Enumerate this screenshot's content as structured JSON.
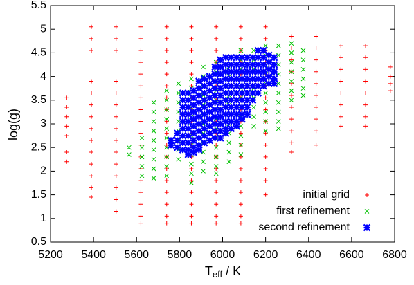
{
  "chart_data": {
    "type": "scatter",
    "xlabel_parts": [
      "T",
      "eff",
      " / K"
    ],
    "ylabel": "log(g)",
    "xlim": [
      5200,
      6800
    ],
    "xticks": [
      5200,
      5400,
      5600,
      5800,
      6000,
      6200,
      6400,
      6600,
      6800
    ],
    "ylim": [
      0.5,
      5.5
    ],
    "yticks": [
      0.5,
      1,
      1.5,
      2,
      2.5,
      3,
      3.5,
      4,
      4.5,
      5,
      5.5
    ],
    "legend": "lower right",
    "series": [
      {
        "name": "initial grid",
        "color": "#ff0000",
        "marker": "plus",
        "x": [
          5275,
          5275,
          5275,
          5275,
          5275,
          5275,
          5275,
          5390,
          5390,
          5390,
          5390,
          5390,
          5390,
          5390,
          5390,
          5390,
          5390,
          5390,
          5390,
          5390,
          5390,
          5505,
          5505,
          5505,
          5505,
          5505,
          5505,
          5505,
          5505,
          5505,
          5505,
          5505,
          5505,
          5505,
          5505,
          5505,
          5620,
          5620,
          5620,
          5620,
          5620,
          5620,
          5620,
          5620,
          5620,
          5620,
          5620,
          5620,
          5620,
          5620,
          5620,
          5620,
          5620,
          5620,
          5740,
          5740,
          5740,
          5740,
          5740,
          5740,
          5740,
          5740,
          5740,
          5740,
          5740,
          5740,
          5740,
          5740,
          5740,
          5740,
          5740,
          5740,
          5855,
          5855,
          5855,
          5855,
          5855,
          5855,
          5855,
          5855,
          5855,
          5855,
          5855,
          5855,
          5855,
          5855,
          5855,
          5855,
          5855,
          5855,
          5970,
          5970,
          5970,
          5970,
          5970,
          5970,
          5970,
          5970,
          5970,
          5970,
          5970,
          5970,
          5970,
          5970,
          5970,
          5970,
          5970,
          5970,
          6085,
          6085,
          6085,
          6085,
          6085,
          6085,
          6085,
          6085,
          6085,
          6085,
          6085,
          6085,
          6085,
          6085,
          6085,
          6085,
          6085,
          6085,
          6200,
          6200,
          6200,
          6200,
          6200,
          6200,
          6200,
          6200,
          6200,
          6200,
          6200,
          6200,
          6200,
          6200,
          6200,
          6320,
          6320,
          6320,
          6320,
          6320,
          6320,
          6320,
          6320,
          6320,
          6320,
          6320,
          6435,
          6435,
          6435,
          6435,
          6435,
          6435,
          6435,
          6435,
          6435,
          6435,
          6550,
          6550,
          6550,
          6550,
          6550,
          6550,
          6550,
          6550,
          6665,
          6665,
          6665,
          6665,
          6665,
          6665,
          6665,
          6665,
          6780,
          6780,
          6780,
          6780
        ],
        "values": [
          3.55,
          3.35,
          3.15,
          2.95,
          2.75,
          2.4,
          2.2,
          5.05,
          4.8,
          4.55,
          3.9,
          3.65,
          3.4,
          3.15,
          2.9,
          2.65,
          2.4,
          2.15,
          1.9,
          1.65,
          1.45,
          5.05,
          4.8,
          4.55,
          3.9,
          3.65,
          3.4,
          3.15,
          2.9,
          2.65,
          2.4,
          2.15,
          1.9,
          1.65,
          1.4,
          1.15,
          5.05,
          4.8,
          4.55,
          4.3,
          4.05,
          3.8,
          3.55,
          3.3,
          3.05,
          2.8,
          2.55,
          2.3,
          2.05,
          1.8,
          1.55,
          1.3,
          1.05,
          0.9,
          5.05,
          4.8,
          4.55,
          4.3,
          4.05,
          3.8,
          3.55,
          3.3,
          3.05,
          2.8,
          2.55,
          2.3,
          2.05,
          1.8,
          1.55,
          1.3,
          1.05,
          0.9,
          5.05,
          4.8,
          4.55,
          4.3,
          4.05,
          3.8,
          3.55,
          3.3,
          3.05,
          2.8,
          2.55,
          2.3,
          2.05,
          1.8,
          1.55,
          1.3,
          1.05,
          0.9,
          5.05,
          4.8,
          4.55,
          4.3,
          4.05,
          3.8,
          3.55,
          3.3,
          3.05,
          2.8,
          2.55,
          2.3,
          2.05,
          1.8,
          1.55,
          1.3,
          1.05,
          0.9,
          5.05,
          4.8,
          4.55,
          4.3,
          4.05,
          3.8,
          3.55,
          3.3,
          3.05,
          2.8,
          2.55,
          2.3,
          2.05,
          1.8,
          1.55,
          1.3,
          1.05,
          0.9,
          5.05,
          4.8,
          4.55,
          4.3,
          4.05,
          3.8,
          3.55,
          3.3,
          3.05,
          2.8,
          2.55,
          2.3,
          2.05,
          1.8,
          1.5,
          4.85,
          4.6,
          4.35,
          4.1,
          3.85,
          3.6,
          3.35,
          3.1,
          2.85,
          2.6,
          2.4,
          4.85,
          4.6,
          4.35,
          4.1,
          3.85,
          3.6,
          3.35,
          3.1,
          2.85,
          2.55,
          4.65,
          4.4,
          4.15,
          3.9,
          3.65,
          3.4,
          3.15,
          2.95,
          4.65,
          4.4,
          4.15,
          3.9,
          3.65,
          3.4,
          3.15,
          2.95,
          4.2,
          4.0,
          3.85,
          3.7
        ]
      },
      {
        "name": "first refinement",
        "color": "#00c000",
        "marker": "cross",
        "x": [
          5565,
          5565,
          5625,
          5625,
          5625,
          5625,
          5625,
          5680,
          5680,
          5680,
          5680,
          5680,
          5680,
          5680,
          5680,
          5680,
          5740,
          5740,
          5740,
          5740,
          5740,
          5740,
          5740,
          5740,
          5740,
          5740,
          5795,
          5795,
          5795,
          5795,
          5795,
          5795,
          5795,
          5795,
          5795,
          5855,
          5855,
          5855,
          5855,
          5855,
          5855,
          5855,
          5855,
          5855,
          5855,
          5855,
          5855,
          5910,
          5910,
          5910,
          5910,
          5910,
          5910,
          5910,
          5910,
          5910,
          5910,
          5910,
          5910,
          5970,
          5970,
          5970,
          5970,
          5970,
          5970,
          5970,
          5970,
          5970,
          5970,
          5970,
          5970,
          5970,
          6030,
          6030,
          6030,
          6030,
          6030,
          6030,
          6030,
          6030,
          6030,
          6030,
          6030,
          6030,
          6085,
          6085,
          6085,
          6085,
          6085,
          6085,
          6085,
          6085,
          6085,
          6085,
          6085,
          6085,
          6145,
          6145,
          6145,
          6145,
          6145,
          6145,
          6145,
          6145,
          6145,
          6200,
          6200,
          6200,
          6200,
          6200,
          6200,
          6200,
          6200,
          6200,
          6200,
          6260,
          6260,
          6260,
          6260,
          6260,
          6260,
          6260,
          6260,
          6260,
          6260,
          6320,
          6320,
          6320,
          6320,
          6320,
          6320,
          6320,
          6375,
          6375,
          6375,
          6375,
          6375,
          6375
        ],
        "values": [
          2.5,
          2.35,
          2.7,
          2.5,
          2.3,
          2.1,
          1.9,
          3.45,
          3.25,
          3.05,
          2.85,
          2.65,
          2.45,
          2.25,
          2.05,
          1.85,
          3.7,
          3.5,
          3.3,
          3.1,
          2.9,
          2.7,
          2.5,
          2.3,
          2.1,
          1.9,
          3.85,
          3.65,
          3.45,
          3.25,
          3.05,
          2.85,
          2.65,
          2.45,
          2.25,
          3.95,
          3.75,
          3.55,
          3.35,
          3.15,
          2.95,
          2.75,
          2.55,
          2.35,
          2.15,
          1.95,
          1.75,
          4.2,
          4.0,
          3.8,
          3.6,
          3.4,
          3.2,
          3.0,
          2.8,
          2.6,
          2.4,
          2.2,
          2.0,
          4.3,
          4.1,
          3.9,
          3.7,
          3.5,
          3.3,
          3.1,
          2.9,
          2.7,
          2.5,
          2.3,
          2.1,
          1.95,
          4.4,
          4.2,
          4.0,
          3.8,
          3.6,
          3.4,
          3.2,
          3.0,
          2.8,
          2.6,
          2.4,
          2.2,
          4.55,
          4.35,
          4.15,
          3.95,
          3.75,
          3.55,
          3.35,
          3.15,
          2.95,
          2.75,
          2.55,
          2.35,
          4.55,
          4.35,
          4.15,
          3.95,
          3.75,
          3.55,
          3.35,
          3.15,
          2.95,
          4.65,
          4.45,
          4.25,
          4.05,
          3.85,
          3.65,
          3.45,
          3.25,
          3.05,
          2.85,
          4.65,
          4.45,
          4.25,
          4.05,
          3.85,
          3.65,
          3.45,
          3.25,
          3.05,
          2.9,
          4.7,
          4.5,
          4.3,
          4.1,
          3.9,
          3.7,
          3.5,
          4.55,
          4.35,
          4.15,
          3.95,
          3.75,
          3.6
        ]
      },
      {
        "name": "second refinement",
        "color": "#0000ff",
        "marker": "star",
        "x": [
          5760,
          5760,
          5790,
          5790,
          5790,
          5815,
          5815,
          5815,
          5815,
          5815,
          5815,
          5815,
          5815,
          5815,
          5840,
          5840,
          5840,
          5840,
          5840,
          5840,
          5840,
          5840,
          5840,
          5840,
          5865,
          5865,
          5865,
          5865,
          5865,
          5865,
          5865,
          5865,
          5865,
          5865,
          5890,
          5890,
          5890,
          5890,
          5890,
          5890,
          5890,
          5890,
          5890,
          5890,
          5890,
          5915,
          5915,
          5915,
          5915,
          5915,
          5915,
          5915,
          5915,
          5915,
          5915,
          5940,
          5940,
          5940,
          5940,
          5940,
          5940,
          5940,
          5940,
          5940,
          5940,
          5965,
          5965,
          5965,
          5965,
          5965,
          5965,
          5965,
          5965,
          5965,
          5965,
          5965,
          5990,
          5990,
          5990,
          5990,
          5990,
          5990,
          5990,
          5990,
          5990,
          5990,
          5990,
          5990,
          6015,
          6015,
          6015,
          6015,
          6015,
          6015,
          6015,
          6015,
          6015,
          6015,
          6015,
          6015,
          6040,
          6040,
          6040,
          6040,
          6040,
          6040,
          6040,
          6040,
          6040,
          6040,
          6040,
          6065,
          6065,
          6065,
          6065,
          6065,
          6065,
          6065,
          6065,
          6065,
          6065,
          6065,
          6090,
          6090,
          6090,
          6090,
          6090,
          6090,
          6090,
          6090,
          6090,
          6090,
          6115,
          6115,
          6115,
          6115,
          6115,
          6115,
          6115,
          6115,
          6115,
          6140,
          6140,
          6140,
          6140,
          6140,
          6140,
          6140,
          6165,
          6165,
          6165,
          6165,
          6165,
          6165,
          6165,
          6190,
          6190,
          6190,
          6190,
          6190,
          6190,
          6215,
          6215,
          6215,
          6215,
          6215,
          6240,
          6240,
          6240,
          6240,
          6240
        ],
        "values": [
          2.65,
          2.55,
          2.8,
          2.65,
          2.5,
          3.65,
          3.5,
          3.35,
          3.2,
          3.05,
          2.9,
          2.75,
          2.6,
          2.45,
          3.65,
          3.5,
          3.35,
          3.2,
          3.05,
          2.9,
          2.75,
          2.6,
          2.45,
          2.35,
          3.7,
          3.55,
          3.4,
          3.25,
          3.1,
          2.95,
          2.8,
          2.65,
          2.5,
          2.4,
          3.9,
          3.75,
          3.6,
          3.45,
          3.3,
          3.15,
          3.0,
          2.85,
          2.7,
          2.55,
          2.45,
          3.95,
          3.8,
          3.65,
          3.5,
          3.35,
          3.2,
          3.05,
          2.9,
          2.75,
          2.6,
          4.0,
          3.85,
          3.7,
          3.55,
          3.4,
          3.25,
          3.1,
          2.95,
          2.8,
          2.65,
          4.2,
          4.05,
          3.9,
          3.75,
          3.6,
          3.45,
          3.3,
          3.15,
          3.0,
          2.85,
          2.7,
          4.35,
          4.2,
          4.05,
          3.9,
          3.75,
          3.6,
          3.45,
          3.3,
          3.15,
          3.0,
          2.85,
          2.7,
          4.4,
          4.25,
          4.1,
          3.95,
          3.8,
          3.65,
          3.5,
          3.35,
          3.2,
          3.05,
          2.9,
          2.8,
          4.4,
          4.25,
          4.1,
          3.95,
          3.8,
          3.65,
          3.5,
          3.35,
          3.2,
          3.05,
          2.9,
          4.4,
          4.25,
          4.1,
          3.95,
          3.8,
          3.65,
          3.5,
          3.35,
          3.2,
          3.05,
          2.95,
          4.4,
          4.25,
          4.1,
          3.95,
          3.8,
          3.65,
          3.5,
          3.35,
          3.2,
          3.1,
          4.4,
          4.25,
          4.1,
          3.95,
          3.8,
          3.65,
          3.5,
          3.35,
          3.2,
          4.4,
          4.25,
          4.1,
          3.95,
          3.8,
          3.65,
          3.5,
          4.55,
          4.4,
          4.25,
          4.1,
          3.95,
          3.8,
          3.65,
          4.55,
          4.4,
          4.25,
          4.1,
          3.95,
          3.8,
          4.45,
          4.3,
          4.15,
          4.0,
          3.85,
          4.4,
          4.25,
          4.1,
          3.95,
          3.85
        ]
      }
    ]
  }
}
